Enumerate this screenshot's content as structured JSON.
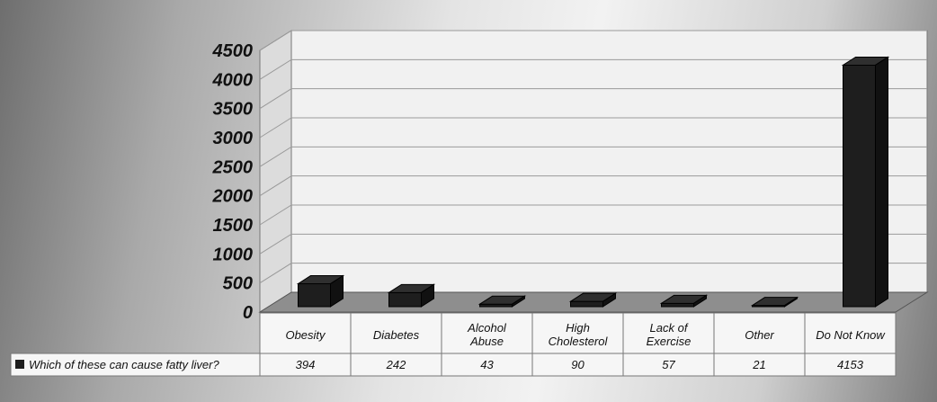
{
  "chart_data": {
    "type": "bar",
    "title": "",
    "xlabel": "",
    "ylabel": "",
    "ylim": [
      0,
      4500
    ],
    "y_ticks": [
      "0",
      "500",
      "1000",
      "1500",
      "2000",
      "2500",
      "3000",
      "3500",
      "4000",
      "4500"
    ],
    "grid": true,
    "categories": [
      [
        "Obesity"
      ],
      [
        "Diabetes"
      ],
      [
        "Alcohol",
        "Abuse"
      ],
      [
        "High",
        "Cholesterol"
      ],
      [
        "Lack of",
        "Exercise"
      ],
      [
        "Other"
      ],
      [
        "Do Not Know"
      ]
    ],
    "series": [
      {
        "name": "Which of these can cause fatty liver?",
        "values": [
          394,
          242,
          43,
          90,
          57,
          21,
          4153
        ],
        "value_labels": [
          "394",
          "242",
          "43",
          "90",
          "57",
          "21",
          "4153"
        ]
      }
    ],
    "legend_placement": "bottom data table",
    "bar_color": "#1e1e1e"
  }
}
